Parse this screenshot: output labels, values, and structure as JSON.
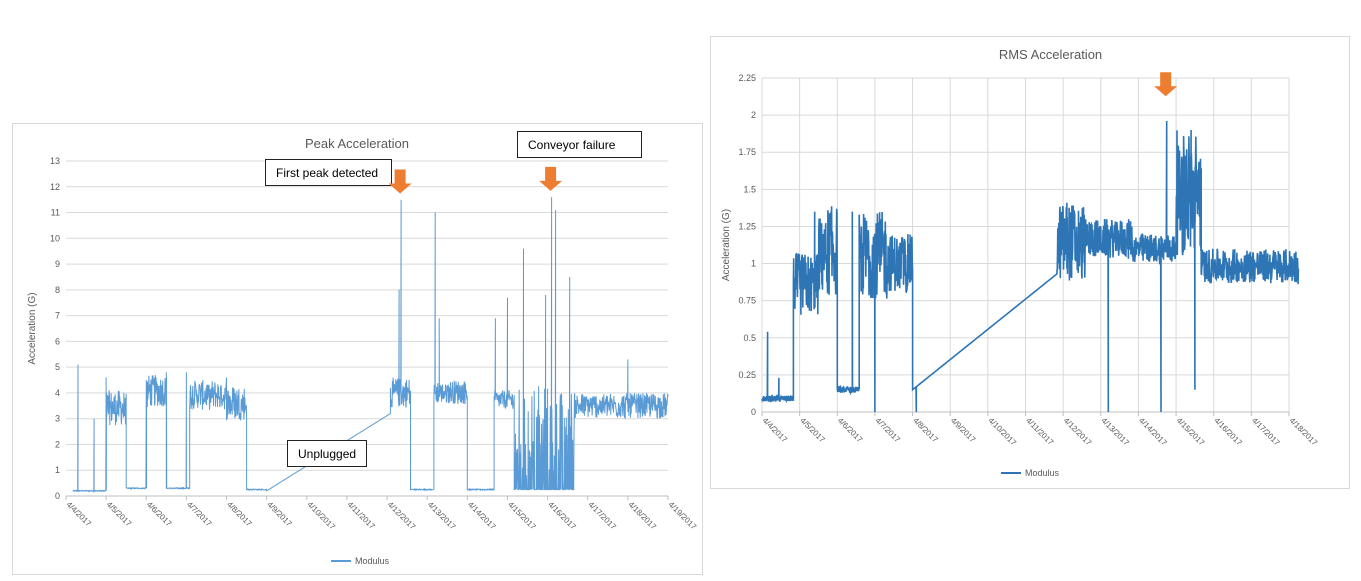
{
  "chart_data": [
    {
      "type": "line",
      "title": "Peak Acceleration",
      "ylabel": "Acceleration (G)",
      "xlabel": "",
      "ylim": [
        0,
        13
      ],
      "yticks": [
        0,
        1,
        2,
        3,
        4,
        5,
        6,
        7,
        8,
        9,
        10,
        11,
        12,
        13
      ],
      "xlim": [
        "4/4/2017",
        "4/19/2017"
      ],
      "xticks": [
        "4/4/2017",
        "4/5/2017",
        "4/6/2017",
        "4/7/2017",
        "4/8/2017",
        "4/9/2017",
        "4/10/2017",
        "4/11/2017",
        "4/12/2017",
        "4/13/2017",
        "4/14/2017",
        "4/15/2017",
        "4/16/2017",
        "4/17/2017",
        "4/18/2017",
        "4/19/2017"
      ],
      "grid": "horizontal",
      "legend_position": "bottom",
      "color": "#5b9bd5",
      "series": [
        {
          "name": "Modulus",
          "segments": [
            {
              "x": [
                "4/4/2017 04:00",
                "4/5/2017 00:00"
              ],
              "level": 0.2,
              "note": "spikes to 5.1 and 3.0"
            },
            {
              "x": [
                "4/5/2017 00:00",
                "4/5/2017 12:00"
              ],
              "range": [
                2.0,
                4.1
              ]
            },
            {
              "x": [
                "4/5/2017 12:00",
                "4/6/2017 00:00"
              ],
              "level": 0.3
            },
            {
              "x": [
                "4/6/2017 00:00",
                "4/6/2017 12:00"
              ],
              "range": [
                2.8,
                4.7
              ]
            },
            {
              "x": [
                "4/6/2017 12:00",
                "4/7/2017 02:00"
              ],
              "level": 0.3
            },
            {
              "x": [
                "4/7/2017 02:00",
                "4/8/2017 00:00"
              ],
              "range": [
                2.8,
                4.5
              ]
            },
            {
              "x": [
                "4/8/2017 00:00",
                "4/8/2017 12:00"
              ],
              "range": [
                2.2,
                4.3
              ]
            },
            {
              "x": [
                "4/8/2017 12:00",
                "4/9/2017 00:00"
              ],
              "level": 0.25
            },
            {
              "x": [
                "4/9/2017 00:00",
                "4/12/2017 02:00"
              ],
              "ramp": [
                0.2,
                3.2
              ],
              "note": "unplugged, no data"
            },
            {
              "x": [
                "4/12/2017 02:00",
                "4/12/2017 14:00"
              ],
              "range": [
                2.8,
                4.6
              ],
              "note": "first peak 11.5"
            },
            {
              "x": [
                "4/12/2017 14:00",
                "4/13/2017 04:00"
              ],
              "level": 0.25
            },
            {
              "x": [
                "4/13/2017 04:00",
                "4/14/2017 00:00"
              ],
              "range": [
                3.1,
                4.5
              ],
              "note": "spike 11.0"
            },
            {
              "x": [
                "4/14/2017 00:00",
                "4/14/2017 16:00"
              ],
              "level": 0.25
            },
            {
              "x": [
                "4/14/2017 16:00",
                "4/15/2017 04:00"
              ],
              "range": [
                3.0,
                4.1
              ],
              "note": "spikes 6.9, 7.7"
            },
            {
              "x": [
                "4/15/2017 04:00",
                "4/16/2017 00:00"
              ],
              "mixed": [
                0.25,
                4.3
              ],
              "note": "spike 9.6"
            },
            {
              "x": [
                "4/16/2017 00:00",
                "4/16/2017 16:00"
              ],
              "mixed": [
                0.25,
                4.2
              ],
              "note": "failure peak 11.6, 8.5"
            },
            {
              "x": [
                "4/16/2017 16:00",
                "4/19/2017 00:00"
              ],
              "range": [
                2.5,
                4.0
              ],
              "note": "spike 5.3"
            }
          ]
        }
      ]
    },
    {
      "type": "line",
      "title": "RMS Acceleration",
      "ylabel": "Acceleration (G)",
      "xlabel": "",
      "ylim": [
        0,
        2.25
      ],
      "yticks": [
        "0",
        "0.25",
        "0.5",
        "0.75",
        "1",
        "1.25",
        "1.5",
        "1.75",
        "2",
        "2.25"
      ],
      "xlim": [
        "4/4/2017",
        "4/18/2017"
      ],
      "xticks": [
        "4/4/2017",
        "4/5/2017",
        "4/6/2017",
        "4/7/2017",
        "4/8/2017",
        "4/9/2017",
        "4/10/2017",
        "4/11/2017",
        "4/12/2017",
        "4/13/2017",
        "4/14/2017",
        "4/15/2017",
        "4/16/2017",
        "4/17/2017",
        "4/18/2017"
      ],
      "grid": "both",
      "legend_position": "bottom",
      "color": "#2e75b6",
      "series": [
        {
          "name": "Modulus",
          "segments": [
            {
              "x": [
                "4/4/2017 00:00",
                "4/4/2017 20:00"
              ],
              "level": 0.09,
              "note": "spikes 0.54, 0.23"
            },
            {
              "x": [
                "4/4/2017 20:00",
                "4/5/2017 12:00"
              ],
              "range": [
                0.45,
                1.07
              ]
            },
            {
              "x": [
                "4/5/2017 12:00",
                "4/6/2017 00:00"
              ],
              "range": [
                0.45,
                1.39
              ]
            },
            {
              "x": [
                "4/6/2017 00:00",
                "4/6/2017 14:00"
              ],
              "level": 0.15
            },
            {
              "x": [
                "4/6/2017 14:00",
                "4/7/2017 08:00"
              ],
              "range": [
                0.45,
                1.35
              ]
            },
            {
              "x": [
                "4/7/2017 08:00",
                "4/8/2017 00:00"
              ],
              "range": [
                0.6,
                1.2
              ]
            },
            {
              "x": [
                "4/8/2017 00:00",
                "4/11/2017 20:00"
              ],
              "ramp": [
                0.15,
                0.93
              ]
            },
            {
              "x": [
                "4/11/2017 20:00",
                "4/12/2017 14:00"
              ],
              "range": [
                0.6,
                1.41
              ]
            },
            {
              "x": [
                "4/12/2017 14:00",
                "4/13/2017 20:00"
              ],
              "range": [
                0.9,
                1.3
              ]
            },
            {
              "x": [
                "4/13/2017 20:00",
                "4/15/2017 00:00"
              ],
              "range": [
                0.9,
                1.2
              ],
              "note": "spike 1.96"
            },
            {
              "x": [
                "4/15/2017 00:00",
                "4/15/2017 16:00"
              ],
              "range": [
                0.6,
                1.9
              ]
            },
            {
              "x": [
                "4/15/2017 16:00",
                "4/18/2017 06:00"
              ],
              "range": [
                0.75,
                1.1
              ]
            }
          ]
        }
      ]
    }
  ],
  "annotations": {
    "first_peak": "First peak detected",
    "conveyor_failure": "Conveyor failure",
    "unplugged": "Unplugged"
  },
  "legend_label": "Modulus",
  "colors": {
    "peak_series": "#5b9bd5",
    "rms_series": "#2e75b6",
    "marker_arrow": "#ed7d31",
    "grid": "#d9d9d9"
  }
}
